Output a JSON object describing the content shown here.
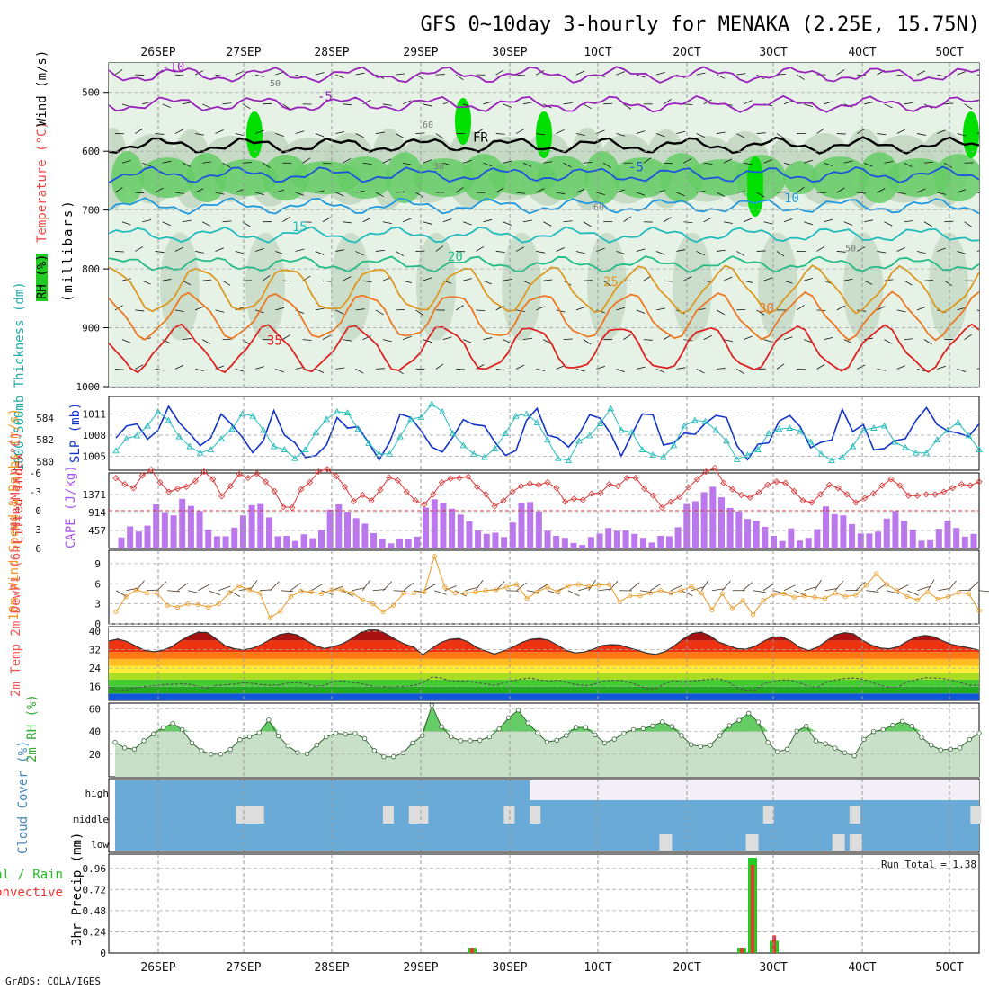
{
  "title": "GFS 0~10day 3-hourly for MENAKA (2.25E, 15.75N)",
  "credit": "GrADS: COLA/IGES",
  "date_labels": [
    "26SEP",
    "27SEP",
    "28SEP",
    "29SEP",
    "30SEP",
    "1OCT",
    "2OCT",
    "3OCT",
    "4OCT",
    "5OCT"
  ],
  "colors": {
    "grid": "#999999",
    "rh_light": "#e6f2e6",
    "rh_mid": "#bfd6bf",
    "rh_green": "#66cc66",
    "rh_bright": "#00e000",
    "cape": "#bb77ee",
    "li": "#dd3333",
    "slp": "#1133cc",
    "thick": "#22bbbb",
    "wind": "#ee9922",
    "rh2m": "#44bb44",
    "cloud": "#6aaad6",
    "precip_total": "#22cc22",
    "precip_conv": "#ee3333"
  },
  "chart_data": [
    {
      "type": "contour",
      "name": "upper_air",
      "ylabel_parts": [
        "RH (%)",
        "Temperature (°C)",
        "Wind (m/s)"
      ],
      "ylabel_units": "(millibars)",
      "yticks": [
        500,
        600,
        700,
        800,
        900,
        1000
      ],
      "ylim": [
        450,
        1000
      ],
      "isotherms": [
        {
          "label": "-10",
          "level": 470,
          "color": "#9922bb"
        },
        {
          "label": "-5",
          "level": 520,
          "color": "#9922bb"
        },
        {
          "label": "FR",
          "level": 590,
          "color": "#000000"
        },
        {
          "label": "-5",
          "level": 640,
          "color": "#1a55dd"
        },
        {
          "label": "10",
          "level": 693,
          "color": "#2299dd"
        },
        {
          "label": "15",
          "level": 742,
          "color": "#22bbbb"
        },
        {
          "label": "20",
          "level": 792,
          "color": "#22bb88"
        },
        {
          "label": "25",
          "level": 835,
          "color": "#dd9922"
        },
        {
          "label": "30",
          "level": 880,
          "color": "#ee7722"
        },
        {
          "label": "35",
          "level": 935,
          "color": "#dd2222"
        }
      ],
      "rh_labels": [
        "50",
        "60",
        "30",
        "60",
        "50"
      ]
    },
    {
      "type": "line",
      "name": "slp_thickness",
      "ylabel_left": "1000-500mb Thickness (dm)",
      "ylabel_right": "SLP (mb)",
      "yticks_left": [
        580,
        582,
        584
      ],
      "yticks_right": [
        1005,
        1008,
        1011
      ],
      "ylim_slp": [
        1003,
        1013.5
      ],
      "ylim_thick": [
        579.2,
        586
      ],
      "series": [
        {
          "name": "SLP",
          "values": [
            1007.6,
            1009.3,
            1009.6,
            1007.4,
            1008.7,
            1012.1,
            1009.8,
            1008.2,
            1006.5,
            1007.6,
            1011.0,
            1009.5,
            1007.7,
            1005.5,
            1007.2,
            1011.5,
            1008.0,
            1006.9,
            1004.8,
            1005.1,
            1006.6,
            1010.5,
            1009.0,
            1009.2,
            1006.9,
            1004.5,
            1007.0,
            1011.0,
            1010.5,
            1008.6,
            1006.3,
            1005.6,
            1007.7,
            1010.2,
            1009.5,
            1009.3,
            1007.0,
            1005.1,
            1005.8,
            1010.1,
            1011.8,
            1008.0,
            1007.6,
            1006.3,
            1008.1,
            1010.9,
            1010.4,
            1008.2,
            1005.0,
            1008.1,
            1011.0,
            1010.9,
            1006.6,
            1006.9,
            1008.3,
            1008.1,
            1009.7,
            1010.8,
            1010.5,
            1006.5,
            1004.5,
            1006.7,
            1006.9,
            1010.0,
            1010.8,
            1009.2,
            1006.2,
            1007.0,
            1007.3,
            1011.7,
            1008.5,
            1009.5,
            1005.9,
            1006.1,
            1007.2,
            1007.5,
            1010.1,
            1011.9,
            1009.5,
            1008.6,
            1008.3,
            1007.8,
            1009.6
          ]
        },
        {
          "name": "Thickness",
          "values": [
            581.0,
            582.1,
            582.4,
            583.3,
            584.6,
            583.8,
            582.3,
            581.4,
            580.8,
            581.1,
            582.1,
            583.0,
            584.4,
            584.2,
            582.9,
            581.4,
            581.1,
            580.3,
            581.1,
            582.7,
            583.9,
            584.6,
            584.5,
            583.0,
            581.7,
            580.7,
            580.7,
            582.3,
            583.9,
            584.1,
            585.3,
            584.6,
            582.6,
            581.5,
            580.7,
            580.4,
            581.2,
            582.6,
            584.2,
            584.4,
            583.6,
            582.0,
            580.3,
            580.1,
            581.9,
            582.4,
            583.5,
            584.9,
            582.9,
            582.7,
            581.1,
            580.6,
            580.4,
            581.5,
            583.3,
            583.8,
            583.7,
            582.9,
            581.9,
            580.2,
            580.6,
            581.1,
            582.6,
            583.0,
            583.1,
            582.8,
            581.8,
            580.7,
            580.1,
            580.4,
            581.4,
            582.9,
            583.1,
            583.3,
            581.8,
            581.3,
            580.8,
            580.8,
            582.0,
            582.9,
            583.6,
            582.4,
            581.1
          ]
        }
      ]
    },
    {
      "type": "bar",
      "name": "cape_li",
      "ylabel_left": "Lifted Index",
      "ylabel_right": "CAPE (J/kg)",
      "yticks_left": [
        "-6",
        "-3",
        "0",
        "3",
        "6"
      ],
      "yticks_right": [
        457,
        914,
        1371
      ],
      "ylim_cape": [
        0,
        1920
      ],
      "ylim_li": [
        6,
        -6
      ],
      "series": [
        {
          "name": "CAPE",
          "values": [
            280,
            560,
            430,
            580,
            1120,
            900,
            840,
            1260,
            1080,
            950,
            480,
            310,
            310,
            530,
            840,
            1100,
            1130,
            790,
            310,
            320,
            190,
            360,
            260,
            480,
            990,
            1120,
            920,
            770,
            630,
            390,
            250,
            130,
            240,
            230,
            300,
            1040,
            1250,
            1160,
            1010,
            860,
            690,
            460,
            370,
            400,
            290,
            660,
            1160,
            1180,
            940,
            450,
            320,
            270,
            140,
            90,
            290,
            380,
            520,
            450,
            460,
            370,
            270,
            150,
            320,
            310,
            540,
            1130,
            1200,
            1430,
            1570,
            1300,
            1030,
            940,
            750,
            700,
            550,
            320,
            190,
            510,
            200,
            270,
            490,
            1070,
            870,
            840,
            620,
            380,
            380,
            430,
            760,
            950,
            700,
            480,
            200,
            210,
            500,
            710,
            520,
            300,
            370
          ]
        },
        {
          "name": "LI",
          "values": [
            -5.2,
            -4.2,
            -3.6,
            -5.6,
            -6.5,
            -4.5,
            -3.0,
            -3.5,
            -3.8,
            -4.7,
            -6.2,
            -5.0,
            -2.3,
            -3.9,
            -5.8,
            -5.2,
            -5.9,
            -4.6,
            -3.1,
            -0.6,
            -0.5,
            -3.4,
            -4.5,
            -6.2,
            -6.6,
            -5.5,
            -3.8,
            -1.5,
            -2.5,
            -1.6,
            -3.3,
            -5.3,
            -4.8,
            -3.0,
            -1.6,
            -1.0,
            -2.6,
            -4.5,
            -5.1,
            -5.2,
            -5.4,
            -3.8,
            -2.6,
            -0.7,
            -1.6,
            -3.0,
            -3.9,
            -4.3,
            -4.1,
            -4.5,
            -3.6,
            -1.4,
            -1.9,
            -1.7,
            -2.7,
            -2.8,
            -4.2,
            -3.9,
            -5.2,
            -5.2,
            -3.5,
            -2.4,
            -0.5,
            -1.4,
            -2.2,
            -3.7,
            -5.0,
            -6.2,
            -6.8,
            -4.4,
            -3.4,
            -2.5,
            -2.1,
            -2.9,
            -4.1,
            -4.6,
            -4.4,
            -3.1,
            -1.6,
            -1.3,
            -2.6,
            -4.1,
            -3.6,
            -2.6,
            -1.3,
            -2.0,
            -2.7,
            -4.0,
            -5.0,
            -4.0,
            -2.4,
            -2.4,
            -2.6,
            -2.6,
            -3.0,
            -3.6,
            -4.2,
            -4.0,
            -4.6
          ]
        }
      ]
    },
    {
      "type": "line",
      "name": "wind10m",
      "ylabel": "10m Wind Speed & Barbs (m/s)",
      "yticks": [
        0,
        3,
        6,
        9
      ],
      "ylim": [
        0,
        11
      ],
      "series": [
        {
          "name": "Speed",
          "values": [
            1.8,
            4.1,
            5.1,
            4.6,
            4.6,
            2.8,
            2.5,
            3.0,
            2.9,
            2.5,
            3.0,
            4.6,
            5.7,
            5.1,
            4.6,
            0.9,
            1.9,
            4.1,
            4.9,
            4.8,
            4.5,
            5.1,
            5.1,
            4.6,
            3.6,
            3.0,
            1.8,
            2.8,
            4.6,
            4.6,
            4.8,
            10.1,
            5.5,
            4.6,
            4.6,
            4.8,
            5.0,
            5.1,
            5.5,
            5.9,
            3.8,
            4.8,
            5.5,
            4.8,
            5.7,
            5.9,
            5.6,
            5.8,
            5.9,
            3.3,
            4.2,
            4.2,
            4.6,
            5.0,
            4.6,
            5.0,
            5.6,
            4.6,
            2.1,
            4.5,
            2.3,
            3.5,
            1.4,
            3.5,
            4.4,
            4.5,
            4.0,
            4.2,
            4.0,
            3.8,
            4.6,
            4.1,
            4.3,
            5.8,
            7.5,
            5.9,
            5.0,
            4.1,
            3.6,
            4.8,
            3.7,
            4.1,
            4.7,
            4.5,
            2.0
          ]
        }
      ]
    },
    {
      "type": "area",
      "name": "temp2m",
      "ylabel": "2m Temp 2m DewPt (6hr Min/Max) (°C)",
      "yticks": [
        16,
        24,
        32,
        40
      ],
      "ylim": [
        10,
        42
      ],
      "series": [
        {
          "name": "Temp",
          "values": [
            35.8,
            36.6,
            35.6,
            33.6,
            31.7,
            31.1,
            31.7,
            33.3,
            35.9,
            38.1,
            39.6,
            39.4,
            36.6,
            33.7,
            32.4,
            31.9,
            32.6,
            34.2,
            36.5,
            38.5,
            39.2,
            38.4,
            36.1,
            33.9,
            32.5,
            33.3,
            34.5,
            36.6,
            39.3,
            40.6,
            40.5,
            38.7,
            36.4,
            34.4,
            33.1,
            29.8,
            32.6,
            35.1,
            36.5,
            36.9,
            35.5,
            33.0,
            31.5,
            30.1,
            31.5,
            33.1,
            35.1,
            36.5,
            36.9,
            36.1,
            34.0,
            31.7,
            30.6,
            31.0,
            32.2,
            33.8,
            34.2,
            34.0,
            32.8,
            31.7,
            30.5,
            30.0,
            31.2,
            33.6,
            36.6,
            39.0,
            39.6,
            38.1,
            35.3,
            33.9,
            32.5,
            32.2,
            33.4,
            35.7,
            37.5,
            37.6,
            35.8,
            33.0,
            31.6,
            33.1,
            35.9,
            38.5,
            39.4,
            38.9,
            36.1,
            34.0,
            32.7,
            32.4,
            33.3,
            35.7,
            37.5,
            38.2,
            37.6,
            35.7,
            34.2,
            33.4,
            32.7,
            31.8
          ]
        },
        {
          "name": "DewPt",
          "values": [
            15.8,
            14.3,
            14.6,
            15.4,
            16.0,
            16.3,
            16.8,
            17.0,
            17.3,
            17.0,
            16.1,
            15.4,
            16.6,
            16.8,
            17.1,
            17.7,
            17.4,
            16.9,
            16.6,
            16.7,
            17.6,
            17.8,
            17.2,
            16.1,
            16.5,
            18.1,
            18.6,
            17.8,
            17.5,
            16.5,
            15.9,
            15.9,
            16.0,
            16.1,
            16.5,
            17.7,
            20.1,
            19.8,
            18.5,
            18.4,
            18.4,
            17.7,
            17.2,
            16.5,
            17.6,
            18.6,
            19.3,
            19.7,
            18.9,
            18.3,
            18.8,
            17.9,
            17.0,
            16.4,
            16.9,
            18.3,
            18.7,
            18.7,
            17.9,
            16.5,
            14.9,
            15.2,
            17.3,
            18.7,
            17.9,
            18.5,
            18.8,
            19.2,
            19.4,
            18.1,
            15.5,
            14.5,
            14.3,
            17.3,
            18.1,
            18.9,
            18.8,
            17.6,
            16.2,
            15.7,
            18.0,
            18.9,
            19.5,
            19.7,
            19.2,
            17.9,
            16.6,
            15.6,
            16.0,
            18.0,
            19.0,
            19.8,
            19.7,
            19.5,
            18.8,
            17.6,
            16.6,
            16.6
          ]
        }
      ]
    },
    {
      "type": "area",
      "name": "rh2m",
      "ylabel": "2m RH (%)",
      "yticks": [
        20,
        40,
        60
      ],
      "ylim": [
        0,
        65
      ],
      "series": [
        {
          "name": "RH",
          "values": [
            30.4,
            25.5,
            24.3,
            31.8,
            37.7,
            43.3,
            47.1,
            41.6,
            29.9,
            23.0,
            20.0,
            20.0,
            24.1,
            32.7,
            35.3,
            38.8,
            50.1,
            36.0,
            27.2,
            21.4,
            20.3,
            28.0,
            35.2,
            38.5,
            37.6,
            38.3,
            33.7,
            23.1,
            17.7,
            17.7,
            21.1,
            29.8,
            36.3,
            62.9,
            44.1,
            35.2,
            31.8,
            31.8,
            32.2,
            35.2,
            42.2,
            52.1,
            58.8,
            47.5,
            38.8,
            30.7,
            32.2,
            36.4,
            43.6,
            43.5,
            36.9,
            29.9,
            33.2,
            38.3,
            41.7,
            42.5,
            44.9,
            48.4,
            44.3,
            36.5,
            28.4,
            26.8,
            27.8,
            36.4,
            45.2,
            49.9,
            56.0,
            48.3,
            30.3,
            22.1,
            24.3,
            40.3,
            44.6,
            31.6,
            29.2,
            25.3,
            21.2,
            18.5,
            33.0,
            39.9,
            41.6,
            45.4,
            48.9,
            44.6,
            34.9,
            28.0,
            23.7,
            24.3,
            25.5,
            32.9,
            38.5
          ]
        }
      ]
    },
    {
      "type": "bar",
      "name": "cloud",
      "ylabel": "Cloud Cover (%)",
      "rows": [
        "high",
        "middle",
        "low"
      ],
      "high_clear_from": 0.48,
      "middle_gaps": [
        0.14,
        0.15,
        0.16,
        0.31,
        0.34,
        0.35,
        0.45,
        0.48,
        0.75,
        0.85,
        0.99
      ],
      "low_gaps": [
        0.63,
        0.73,
        0.83,
        0.85
      ]
    },
    {
      "type": "bar",
      "name": "precip",
      "ylabel": "3hr Precip (mm)",
      "legend": [
        "Total / Rain",
        "Convective"
      ],
      "run_total_label": "Run Total = 1.38",
      "yticks": [
        "0",
        "0.24",
        "0.48",
        "0.72",
        "0.96"
      ],
      "ylim": [
        0,
        1.08
      ],
      "series": [
        {
          "name": "Total",
          "values": [
            {
              "i": 33,
              "v": 0.06
            },
            {
              "i": 58,
              "v": 0.06
            },
            {
              "i": 59,
              "v": 1.08
            },
            {
              "i": 61,
              "v": 0.14
            }
          ]
        },
        {
          "name": "Convective",
          "values": [
            {
              "i": 33,
              "v": 0.06
            },
            {
              "i": 58,
              "v": 0.06
            },
            {
              "i": 59,
              "v": 1.0
            },
            {
              "i": 61,
              "v": 0.2
            }
          ]
        }
      ]
    }
  ]
}
